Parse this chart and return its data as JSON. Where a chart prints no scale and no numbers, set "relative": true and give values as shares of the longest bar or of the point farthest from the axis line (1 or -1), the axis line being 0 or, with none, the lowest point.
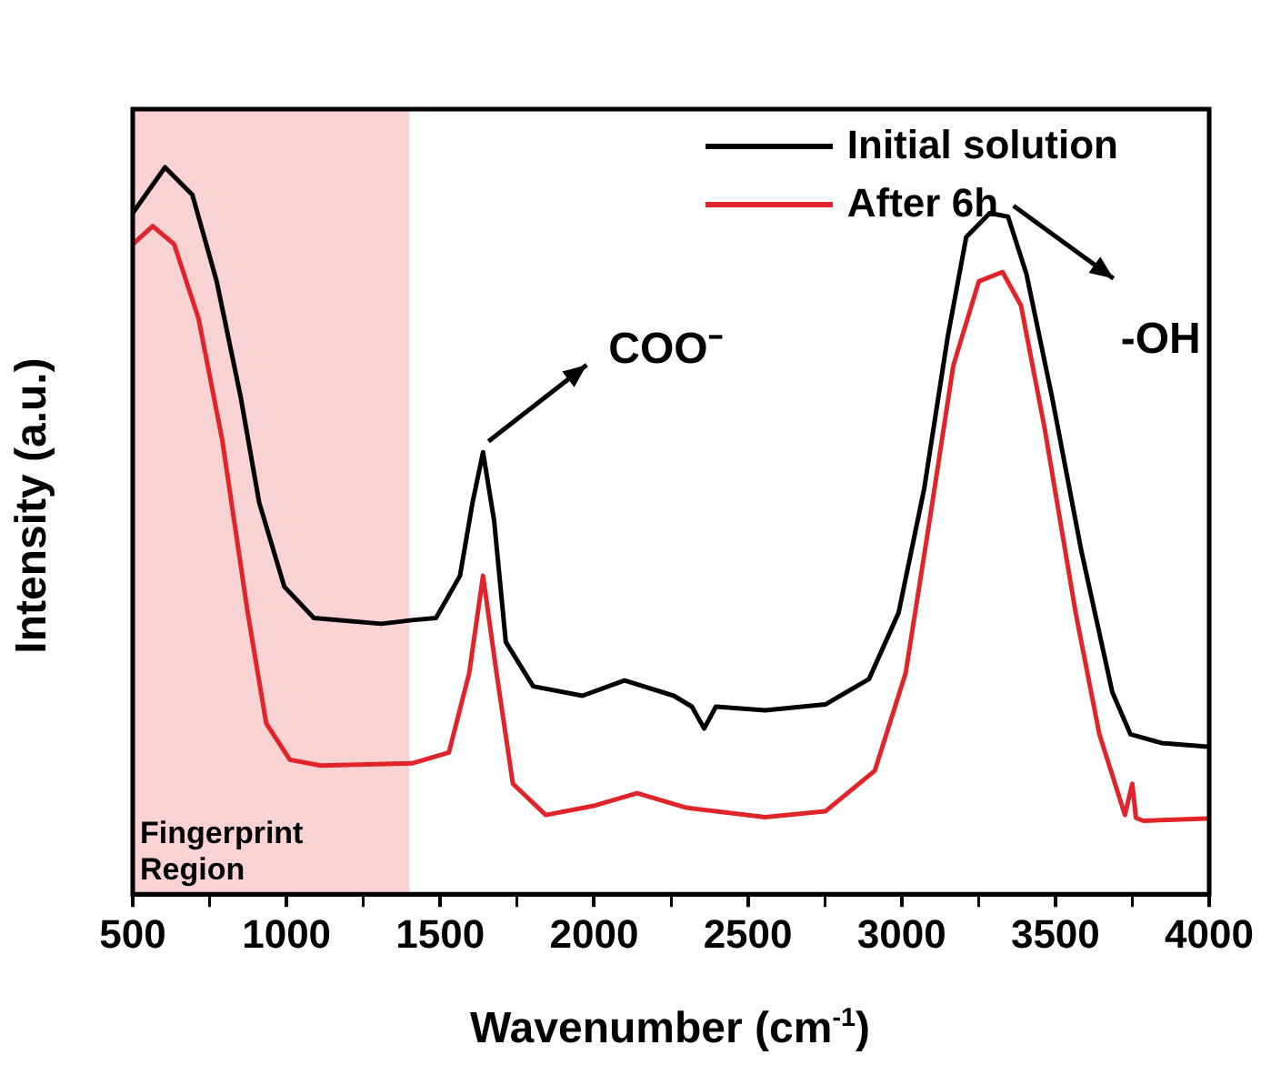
{
  "chart_data": {
    "type": "line",
    "xlabel": "Wavenumber (cm$^{-1}$)",
    "ylabel": "Intensity (a.u.)",
    "relative": true,
    "xlim": [
      500,
      4000
    ],
    "xticks": [
      500,
      {
        "value": 750,
        "label": null
      },
      1000,
      {
        "value": 1250,
        "label": null
      },
      1500,
      {
        "value": 1750,
        "label": null
      },
      2000,
      {
        "value": 2250,
        "label": null
      },
      2500,
      {
        "value": 2750,
        "label": null
      },
      3000,
      {
        "value": 3250,
        "label": null
      },
      3500,
      {
        "value": 3750,
        "label": null
      },
      4000
    ],
    "grid": false,
    "legend": "top right",
    "marker": "none",
    "line_style": "solid",
    "series": [
      {
        "name": "Initial solution",
        "color": "#000000",
        "x": [
          500,
          605,
          694,
          773,
          851,
          911,
          993,
          1089,
          1308,
          1408,
          1486,
          1564,
          1605,
          1639,
          1675,
          1713,
          1802,
          1962,
          2099,
          2259,
          2318,
          2358,
          2396,
          2556,
          2752,
          2894,
          2990,
          3073,
          3150,
          3210,
          3287,
          3346,
          3406,
          3489,
          3584,
          3685,
          3744,
          3845,
          3994
        ],
        "values": [
          0.937,
          1.0,
          0.962,
          0.843,
          0.684,
          0.539,
          0.423,
          0.38,
          0.372,
          0.377,
          0.38,
          0.438,
          0.539,
          0.608,
          0.514,
          0.347,
          0.286,
          0.273,
          0.294,
          0.273,
          0.258,
          0.228,
          0.258,
          0.253,
          0.261,
          0.296,
          0.387,
          0.557,
          0.767,
          0.904,
          0.937,
          0.932,
          0.853,
          0.684,
          0.473,
          0.278,
          0.22,
          0.208,
          0.203
        ]
      },
      {
        "name": "After 6h",
        "color": "#e0242a",
        "x": [
          500,
          565,
          635,
          714,
          791,
          874,
          934,
          1011,
          1112,
          1408,
          1528,
          1594,
          1639,
          1683,
          1736,
          1843,
          2003,
          2140,
          2300,
          2556,
          2752,
          2913,
          3013,
          3091,
          3168,
          3251,
          3328,
          3388,
          3465,
          3566,
          3643,
          3726,
          3750,
          3762,
          3786,
          3994
        ],
        "values": [
          0.894,
          0.919,
          0.894,
          0.792,
          0.625,
          0.387,
          0.235,
          0.185,
          0.177,
          0.18,
          0.195,
          0.304,
          0.438,
          0.304,
          0.152,
          0.109,
          0.122,
          0.139,
          0.119,
          0.106,
          0.114,
          0.17,
          0.304,
          0.514,
          0.727,
          0.843,
          0.856,
          0.81,
          0.641,
          0.387,
          0.22,
          0.109,
          0.152,
          0.105,
          0.101,
          0.104
        ]
      }
    ],
    "bands": [
      {
        "axis": "x",
        "from": 500,
        "to": 1400,
        "label": "Fingerprint Region",
        "color": "#f9d3d3"
      }
    ],
    "annotations": [
      {
        "text": "COO⁻",
        "x": 1639,
        "y": 0.608
      },
      {
        "text": "-OH",
        "x": 3346,
        "y": 0.932
      }
    ]
  }
}
